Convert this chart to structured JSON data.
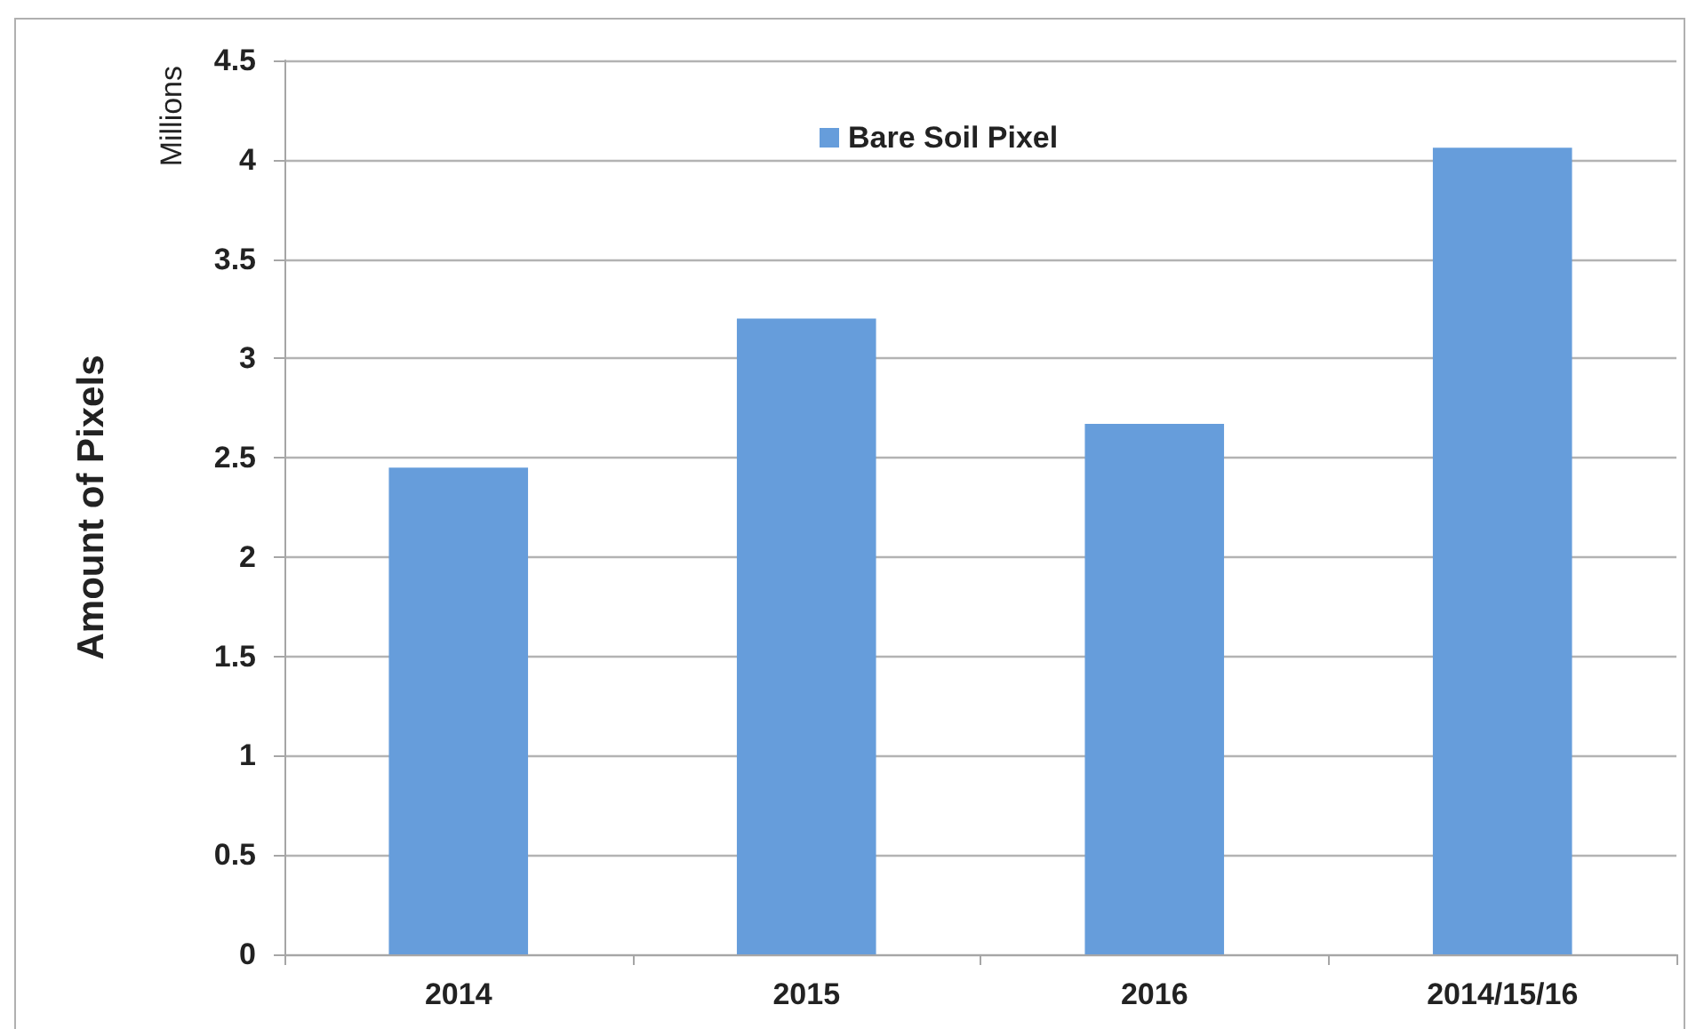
{
  "chart_data": {
    "type": "bar",
    "ylabel": "Amount of Pixels",
    "annotations": [
      "Millions"
    ],
    "categories": [
      "2014",
      "2015",
      "2016",
      "2014/15/16"
    ],
    "series": [
      {
        "name": "Bare Soil Pixel",
        "color": "#669ddb",
        "values": [
          2.45,
          3.2,
          2.67,
          4.06
        ]
      }
    ],
    "ylim": [
      0,
      4.5
    ],
    "yticks": [
      0,
      0.5,
      1,
      1.5,
      2,
      2.5,
      3,
      3.5,
      4,
      4.5
    ],
    "grid": "y",
    "legend": "top"
  }
}
